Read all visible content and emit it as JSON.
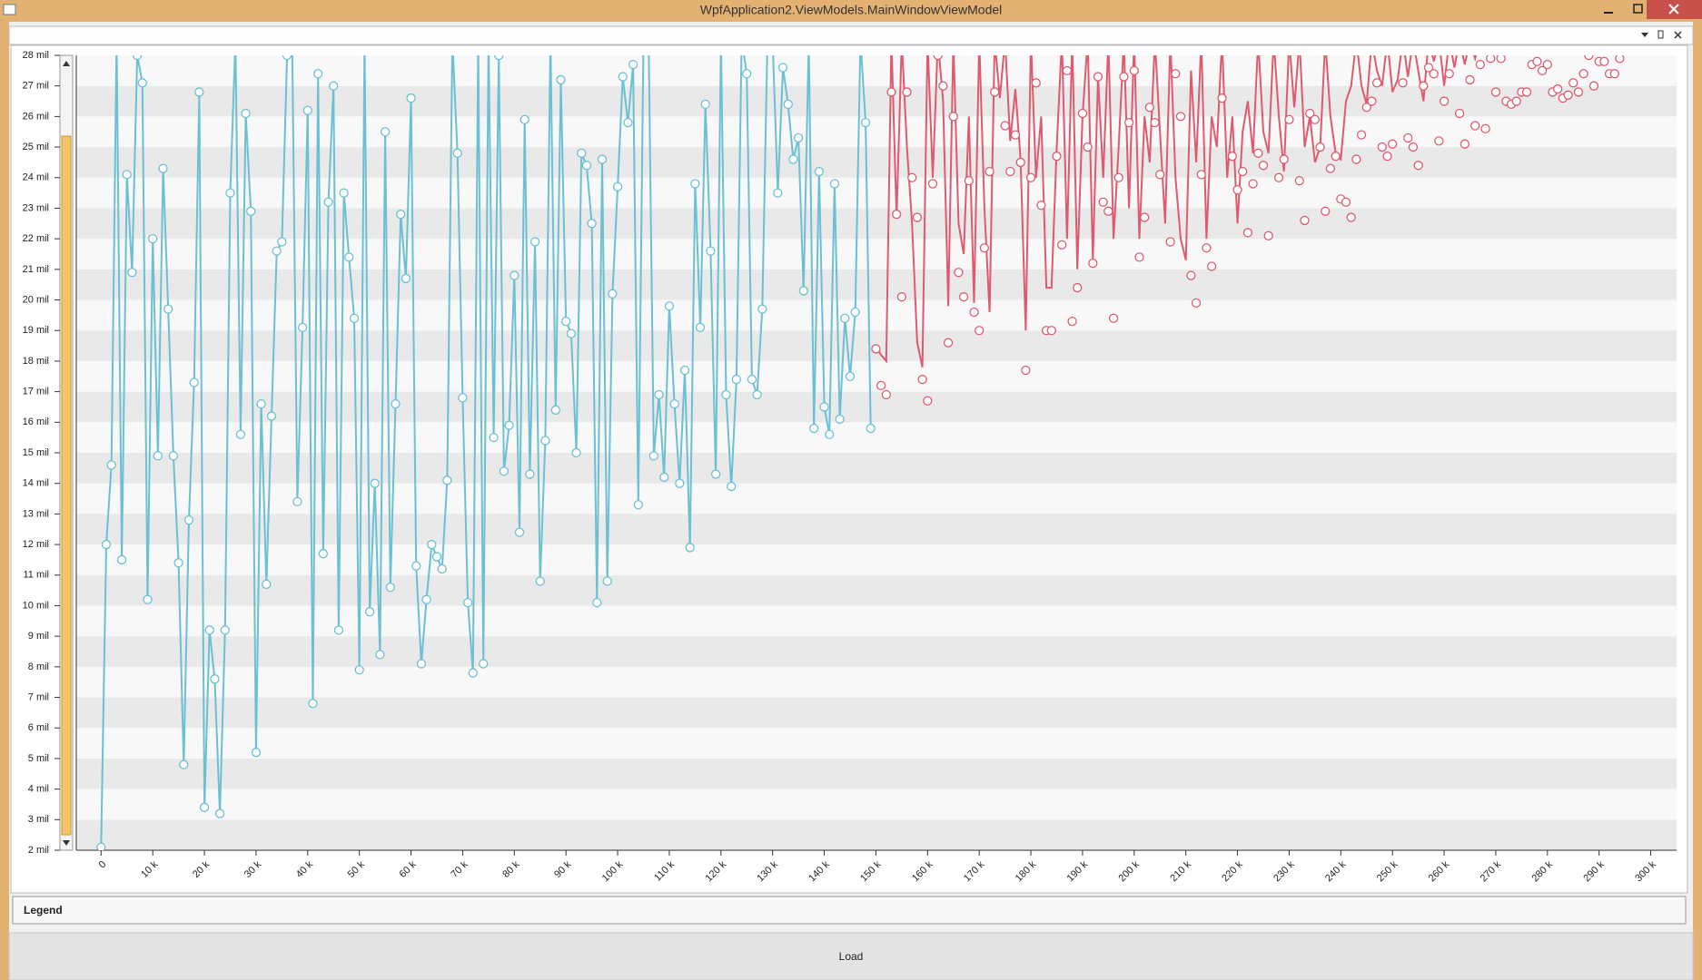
{
  "window": {
    "title": "WpfApplication2.ViewModels.MainWindowViewModel"
  },
  "legend": {
    "title": "Legend"
  },
  "button": {
    "label": "Load"
  },
  "chart_data": {
    "type": "line",
    "xlim": [
      -4.8,
      305
    ],
    "ylim": [
      2,
      28
    ],
    "xticks": [
      0,
      {
        "value": 10,
        "label": "10 k"
      },
      {
        "value": 20,
        "label": "20 k"
      },
      {
        "value": 30,
        "label": "30 k"
      },
      {
        "value": 40,
        "label": "40 k"
      },
      {
        "value": 50,
        "label": "50 k"
      },
      {
        "value": 60,
        "label": "60 k"
      },
      {
        "value": 70,
        "label": "70 k"
      },
      {
        "value": 80,
        "label": "80 k"
      },
      {
        "value": 90,
        "label": "90 k"
      },
      {
        "value": 100,
        "label": "100 k"
      },
      {
        "value": 110,
        "label": "110 k"
      },
      {
        "value": 120,
        "label": "120 k"
      },
      {
        "value": 130,
        "label": "130 k"
      },
      {
        "value": 140,
        "label": "140 k"
      },
      {
        "value": 150,
        "label": "150 k"
      },
      {
        "value": 160,
        "label": "160 k"
      },
      {
        "value": 170,
        "label": "170 k"
      },
      {
        "value": 180,
        "label": "180 k"
      },
      {
        "value": 190,
        "label": "190 k"
      },
      {
        "value": 200,
        "label": "200 k"
      },
      {
        "value": 210,
        "label": "210 k"
      },
      {
        "value": 220,
        "label": "220 k"
      },
      {
        "value": 230,
        "label": "230 k"
      },
      {
        "value": 240,
        "label": "240 k"
      },
      {
        "value": 250,
        "label": "250 k"
      },
      {
        "value": 260,
        "label": "260 k"
      },
      {
        "value": 270,
        "label": "270 k"
      },
      {
        "value": 280,
        "label": "280 k"
      },
      {
        "value": 290,
        "label": "290 k"
      },
      {
        "value": 300,
        "label": "300 k"
      }
    ],
    "yticks": [
      {
        "value": 2,
        "label": "2 mil"
      },
      {
        "value": 3,
        "label": "3 mil"
      },
      {
        "value": 4,
        "label": "4 mil"
      },
      {
        "value": 5,
        "label": "5 mil"
      },
      {
        "value": 6,
        "label": "6 mil"
      },
      {
        "value": 7,
        "label": "7 mil"
      },
      {
        "value": 8,
        "label": "8 mil"
      },
      {
        "value": 9,
        "label": "9 mil"
      },
      {
        "value": 10,
        "label": "10 mil"
      },
      {
        "value": 11,
        "label": "11 mil"
      },
      {
        "value": 12,
        "label": "12 mil"
      },
      {
        "value": 13,
        "label": "13 mil"
      },
      {
        "value": 14,
        "label": "14 mil"
      },
      {
        "value": 15,
        "label": "15 mil"
      },
      {
        "value": 16,
        "label": "16 mil"
      },
      {
        "value": 17,
        "label": "17 mil"
      },
      {
        "value": 18,
        "label": "18 mil"
      },
      {
        "value": 19,
        "label": "19 mil"
      },
      {
        "value": 20,
        "label": "20 mil"
      },
      {
        "value": 21,
        "label": "21 mil"
      },
      {
        "value": 22,
        "label": "22 mil"
      },
      {
        "value": 23,
        "label": "23 mil"
      },
      {
        "value": 24,
        "label": "24 mil"
      },
      {
        "value": 25,
        "label": "25 mil"
      },
      {
        "value": 26,
        "label": "26 mil"
      },
      {
        "value": 27,
        "label": "27 mil"
      },
      {
        "value": 28,
        "label": "28 mil"
      }
    ],
    "grid": "bands",
    "series": [
      {
        "type": "line",
        "color": "#6cc0d4",
        "markers": true,
        "x": [
          0,
          1,
          2,
          3,
          4,
          5,
          6,
          7,
          8,
          9,
          10,
          11,
          12,
          13,
          14,
          15,
          16,
          17,
          18,
          19,
          20,
          21,
          22,
          23,
          24,
          25,
          26,
          27,
          28,
          29,
          30,
          31,
          32,
          33,
          34,
          35,
          36,
          37,
          38,
          39,
          40,
          41,
          42,
          43,
          44,
          45,
          46,
          47,
          48,
          49,
          50,
          51,
          52,
          53,
          54,
          55,
          56,
          57,
          58,
          59,
          60,
          61,
          62,
          63,
          64,
          65,
          66,
          67,
          68,
          69,
          70,
          71,
          72,
          73,
          74,
          75,
          76,
          77,
          78,
          79,
          80,
          81,
          82,
          83,
          84,
          85,
          86,
          87,
          88,
          89,
          90,
          91,
          92,
          93,
          94,
          95,
          96,
          97,
          98,
          99,
          100,
          101,
          102,
          103,
          104,
          105,
          106,
          107,
          108,
          109,
          110,
          111,
          112,
          113,
          114,
          115,
          116,
          117,
          118,
          119,
          120,
          121,
          122,
          123,
          124,
          125,
          126,
          127,
          128,
          129,
          130,
          131,
          132,
          133,
          134,
          135,
          136,
          137,
          138,
          139,
          140,
          141,
          142,
          143,
          144,
          145,
          146,
          147,
          148,
          149
        ],
        "values": [
          2.1,
          12.0,
          14.6,
          28.5,
          11.5,
          24.1,
          20.9,
          28.0,
          27.1,
          10.2,
          22.0,
          14.9,
          24.3,
          19.7,
          14.9,
          11.4,
          4.8,
          12.8,
          17.3,
          26.8,
          3.4,
          9.2,
          7.6,
          3.2,
          9.2,
          23.5,
          28.5,
          15.6,
          26.1,
          22.9,
          5.2,
          16.6,
          10.7,
          16.2,
          21.6,
          21.9,
          28.0,
          28.5,
          13.4,
          19.1,
          26.2,
          6.8,
          27.4,
          11.7,
          23.2,
          27.0,
          9.2,
          23.5,
          21.4,
          19.4,
          7.9,
          28.5,
          9.8,
          14.0,
          8.4,
          25.5,
          10.6,
          16.6,
          22.8,
          20.7,
          26.6,
          11.3,
          8.1,
          10.2,
          12.0,
          11.6,
          11.2,
          14.1,
          28.5,
          24.8,
          16.8,
          10.1,
          7.8,
          28.5,
          8.1,
          28.5,
          15.5,
          28.0,
          14.4,
          15.9,
          20.8,
          12.4,
          25.9,
          14.3,
          21.9,
          10.8,
          15.4,
          28.5,
          16.4,
          27.2,
          19.3,
          18.9,
          15.0,
          24.8,
          24.4,
          22.5,
          10.1,
          24.6,
          10.8,
          20.2,
          23.7,
          27.3,
          25.8,
          27.7,
          13.3,
          28.5,
          28.5,
          14.9,
          16.9,
          14.2,
          19.8,
          16.6,
          14.0,
          17.7,
          11.9,
          23.8,
          19.1,
          26.4,
          21.6,
          14.3,
          28.5,
          16.9,
          13.9,
          17.4,
          28.5,
          27.4,
          17.4,
          16.9,
          19.7,
          28.5,
          28.5,
          23.5,
          27.6,
          26.4,
          24.6,
          25.3,
          20.3,
          28.5,
          15.8,
          24.2,
          16.5,
          15.6,
          23.8,
          16.1,
          19.4,
          17.5,
          19.6,
          28.5,
          25.8,
          15.8
        ]
      },
      {
        "type": "line",
        "color": "#de5b6f",
        "markers": false,
        "x": [
          150,
          151,
          152,
          153,
          154,
          155,
          156,
          157,
          158,
          159,
          160,
          161,
          162,
          163,
          164,
          165,
          166,
          167,
          168,
          169,
          170,
          171,
          172,
          173,
          174,
          175,
          176,
          177,
          178,
          179,
          180,
          181,
          182,
          183,
          184,
          185,
          186,
          187,
          188,
          189,
          190,
          191,
          192,
          193,
          194,
          195,
          196,
          197,
          198,
          199,
          200,
          201,
          202,
          203,
          204,
          205,
          206,
          207,
          208,
          209,
          210,
          211,
          212,
          213,
          214,
          215,
          216,
          217,
          218,
          219,
          220,
          221,
          222,
          223,
          224,
          225,
          226,
          227,
          228,
          229,
          230,
          231,
          232,
          233,
          234,
          235,
          236,
          237,
          238,
          239,
          240,
          241,
          242,
          243,
          244,
          245,
          246,
          247,
          248,
          249,
          250,
          251,
          252,
          253,
          254,
          255,
          256,
          257,
          258,
          259,
          260,
          261,
          262,
          263,
          264,
          265,
          266,
          267,
          268
        ],
        "values": [
          18.5,
          18.2,
          18.0,
          28.5,
          22.7,
          28.5,
          25.0,
          22.5,
          18.6,
          17.8,
          28.5,
          24.0,
          28.5,
          26.5,
          19.8,
          28.5,
          22.5,
          21.5,
          26.0,
          19.9,
          28.5,
          23.0,
          19.6,
          28.5,
          26.6,
          28.5,
          25.2,
          26.9,
          24.6,
          19.0,
          28.5,
          24.0,
          26.0,
          20.4,
          20.4,
          25.0,
          28.5,
          22.0,
          28.5,
          21.0,
          26.0,
          28.5,
          21.3,
          27.3,
          24.0,
          28.5,
          22.0,
          25.0,
          28.5,
          23.0,
          28.5,
          22.0,
          26.0,
          24.5,
          28.5,
          25.5,
          22.5,
          28.5,
          24.0,
          22.0,
          21.3,
          27.5,
          24.5,
          28.5,
          22.0,
          26.0,
          25.0,
          28.5,
          24.0,
          26.0,
          22.5,
          25.5,
          26.5,
          24.8,
          28.5,
          25.5,
          24.8,
          28.5,
          26.0,
          24.2,
          28.5,
          26.3,
          28.5,
          25.0,
          26.0,
          24.5,
          25.0,
          28.5,
          26.0,
          24.8,
          24.6,
          26.5,
          27.0,
          28.5,
          27.0,
          26.4,
          28.5,
          27.5,
          27.0,
          28.5,
          26.8,
          27.2,
          28.5,
          27.3,
          28.5,
          27.5,
          26.5,
          28.5,
          27.8,
          28.5,
          27.0,
          28.5,
          27.6,
          28.5,
          27.7,
          28.5,
          27.9,
          28.5,
          28.5
        ]
      },
      {
        "type": "scatter",
        "color": "#de5b6f",
        "x": [
          150,
          151,
          152,
          153,
          154,
          155,
          156,
          157,
          158,
          159,
          160,
          161,
          162,
          163,
          164,
          165,
          166,
          167,
          168,
          169,
          170,
          171,
          172,
          173,
          175,
          176,
          177,
          178,
          179,
          180,
          181,
          182,
          183,
          184,
          185,
          186,
          187,
          188,
          189,
          190,
          191,
          192,
          193,
          194,
          195,
          196,
          197,
          198,
          199,
          200,
          201,
          202,
          203,
          204,
          205,
          207,
          208,
          209,
          211,
          212,
          213,
          214,
          215,
          217,
          219,
          220,
          221,
          222,
          223,
          224,
          225,
          226,
          228,
          229,
          230,
          232,
          233,
          234,
          235,
          236,
          237,
          238,
          239,
          240,
          241,
          242,
          243,
          244,
          245,
          246,
          247,
          248,
          249,
          250,
          252,
          253,
          254,
          255,
          256,
          257,
          258,
          259,
          260,
          261,
          263,
          264,
          265,
          266,
          267,
          268,
          269,
          270,
          271,
          272,
          273,
          274,
          275,
          276,
          277,
          278,
          279,
          280,
          281,
          282,
          283,
          284,
          285,
          286,
          287,
          288,
          289,
          290,
          291,
          292,
          293,
          294
        ],
        "values": [
          18.4,
          17.2,
          16.9,
          26.8,
          22.8,
          20.1,
          26.8,
          24.0,
          22.7,
          17.4,
          16.7,
          23.8,
          28.0,
          27.0,
          18.6,
          26.0,
          20.9,
          20.1,
          23.9,
          19.6,
          19.0,
          21.7,
          24.2,
          26.8,
          25.7,
          24.2,
          25.4,
          24.5,
          17.7,
          24.0,
          27.1,
          23.1,
          19.0,
          19.0,
          24.7,
          21.8,
          27.5,
          19.3,
          20.4,
          26.1,
          25.0,
          21.2,
          27.3,
          23.2,
          22.9,
          19.4,
          24.0,
          27.3,
          25.8,
          27.5,
          21.4,
          22.7,
          26.3,
          25.8,
          24.1,
          21.9,
          27.4,
          26.0,
          20.8,
          19.9,
          24.1,
          21.7,
          21.1,
          26.6,
          24.7,
          23.6,
          24.2,
          22.2,
          23.8,
          24.8,
          24.4,
          22.1,
          24.0,
          24.6,
          25.9,
          23.9,
          22.6,
          26.1,
          25.9,
          25.0,
          22.9,
          24.3,
          24.7,
          23.3,
          23.2,
          22.7,
          24.6,
          25.4,
          26.3,
          26.5,
          27.1,
          25.0,
          24.7,
          25.1,
          27.1,
          25.3,
          25.0,
          24.4,
          27.0,
          27.6,
          27.4,
          25.2,
          26.5,
          27.4,
          26.1,
          25.1,
          27.2,
          25.7,
          27.7,
          25.6,
          27.9,
          26.8,
          27.9,
          26.5,
          26.4,
          26.5,
          26.8,
          26.8,
          27.7,
          27.8,
          27.5,
          27.7,
          26.8,
          26.9,
          26.6,
          26.7,
          27.1,
          26.8,
          27.4,
          28.0,
          27.0,
          27.8,
          27.8,
          27.4,
          27.4,
          27.9
        ]
      }
    ]
  }
}
